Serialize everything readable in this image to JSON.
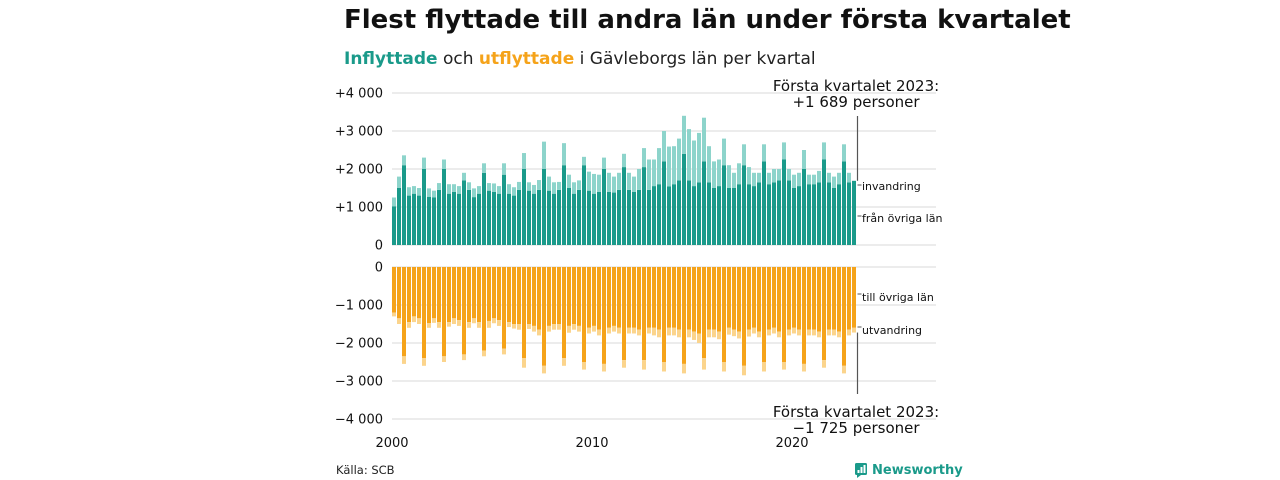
{
  "title": "Flest flyttade till andra län under första kvartalet",
  "subtitle": {
    "part_in": "Inflyttade",
    "part_mid": " och ",
    "part_out": "utflyttade",
    "part_rest": " i Gävleborgs län per kvartal"
  },
  "source": "Källa: SCB",
  "logo": "Newsworthy",
  "colors": {
    "in_dark": "#1a9a8a",
    "in_light": "#8dd4cb",
    "out_dark": "#f5a31a",
    "out_light": "#fbd48c",
    "grid": "#d9d9d9"
  },
  "chart_data": [
    {
      "type": "bar",
      "panel": "inflyttade",
      "stacked": true,
      "x_start": "2000 Q1",
      "x_end": "2023 Q1",
      "ylim": [
        0,
        4000
      ],
      "yticks": [
        {
          "v": 0,
          "label": "0"
        },
        {
          "v": 1000,
          "label": "+1 000"
        },
        {
          "v": 2000,
          "label": "+2 000"
        },
        {
          "v": 3000,
          "label": "+3 000"
        },
        {
          "v": 4000,
          "label": "+4 000"
        }
      ],
      "series": [
        {
          "name": "från övriga län",
          "values": [
            1020,
            1500,
            2100,
            1300,
            1350,
            1300,
            2000,
            1270,
            1250,
            1450,
            2000,
            1350,
            1400,
            1350,
            1700,
            1450,
            1260,
            1350,
            1900,
            1430,
            1400,
            1350,
            1850,
            1350,
            1300,
            1450,
            2000,
            1430,
            1350,
            1450,
            2000,
            1430,
            1350,
            1450,
            2100,
            1500,
            1350,
            1450,
            2100,
            1430,
            1350,
            1400,
            2000,
            1400,
            1380,
            1450,
            2050,
            1450,
            1400,
            1450,
            2050,
            1450,
            1550,
            1600,
            2200,
            1540,
            1600,
            1700,
            2400,
            1700,
            1550,
            1650,
            2200,
            1650,
            1500,
            1550,
            2100,
            1500,
            1500,
            1600,
            2100,
            1600,
            1550,
            1650,
            2200,
            1600,
            1650,
            1700,
            2250,
            1700,
            1500,
            1550,
            2000,
            1600,
            1600,
            1650,
            2250,
            1650,
            1500,
            1600,
            2200,
            1650,
            1689
          ]
        },
        {
          "name": "invandring",
          "values": [
            230,
            300,
            260,
            220,
            200,
            200,
            300,
            220,
            180,
            180,
            250,
            250,
            200,
            200,
            200,
            200,
            230,
            200,
            250,
            200,
            220,
            200,
            300,
            250,
            220,
            210,
            420,
            220,
            230,
            260,
            720,
            370,
            300,
            210,
            580,
            350,
            300,
            250,
            220,
            500,
            520,
            450,
            300,
            500,
            420,
            450,
            350,
            450,
            400,
            550,
            500,
            800,
            700,
            950,
            800,
            1050,
            1000,
            1100,
            1000,
            1350,
            1200,
            1300,
            1150,
            950,
            700,
            700,
            700,
            600,
            400,
            550,
            550,
            450,
            350,
            250,
            450,
            300,
            350,
            300,
            450,
            300,
            350,
            350,
            500,
            250,
            250,
            300,
            450,
            250,
            300,
            300,
            450,
            250,
            0
          ]
        }
      ]
    },
    {
      "type": "bar",
      "panel": "utflyttade",
      "stacked": true,
      "ylim": [
        -4000,
        0
      ],
      "yticks": [
        {
          "v": 0,
          "label": "0"
        },
        {
          "v": -1000,
          "label": "−1 000"
        },
        {
          "v": -2000,
          "label": "−2 000"
        },
        {
          "v": -3000,
          "label": "−3 000"
        },
        {
          "v": -4000,
          "label": "−4 000"
        }
      ],
      "series": [
        {
          "name": "till övriga län",
          "values": [
            -1200,
            -1350,
            -2350,
            -1450,
            -1300,
            -1350,
            -2400,
            -1480,
            -1350,
            -1450,
            -2350,
            -1450,
            -1350,
            -1400,
            -2300,
            -1450,
            -1350,
            -1450,
            -2200,
            -1420,
            -1350,
            -1400,
            -2150,
            -1450,
            -1500,
            -1500,
            -2400,
            -1500,
            -1550,
            -1650,
            -2600,
            -1550,
            -1500,
            -1500,
            -2400,
            -1550,
            -1500,
            -1550,
            -2500,
            -1600,
            -1550,
            -1650,
            -2550,
            -1600,
            -1550,
            -1600,
            -2450,
            -1600,
            -1600,
            -1650,
            -2450,
            -1600,
            -1600,
            -1650,
            -2500,
            -1600,
            -1600,
            -1650,
            -2550,
            -1650,
            -1700,
            -1750,
            -2400,
            -1650,
            -1650,
            -1700,
            -2500,
            -1600,
            -1650,
            -1700,
            -2600,
            -1650,
            -1600,
            -1700,
            -2500,
            -1650,
            -1600,
            -1700,
            -2500,
            -1650,
            -1600,
            -1650,
            -2550,
            -1650,
            -1650,
            -1700,
            -2450,
            -1650,
            -1650,
            -1700,
            -2600,
            -1650,
            -1600
          ]
        },
        {
          "name": "utvandring",
          "values": [
            -100,
            -150,
            -200,
            -150,
            -150,
            -150,
            -200,
            -120,
            -120,
            -150,
            -150,
            -120,
            -150,
            -150,
            -150,
            -150,
            -130,
            -150,
            -150,
            -180,
            -130,
            -150,
            -150,
            -130,
            -120,
            -150,
            -250,
            -130,
            -150,
            -150,
            -200,
            -150,
            -150,
            -150,
            -200,
            -180,
            -150,
            -150,
            -200,
            -150,
            -150,
            -150,
            -200,
            -150,
            -150,
            -150,
            -200,
            -150,
            -150,
            -150,
            -250,
            -150,
            -200,
            -200,
            -250,
            -200,
            -200,
            -200,
            -250,
            -200,
            -220,
            -250,
            -300,
            -200,
            -200,
            -200,
            -250,
            -180,
            -170,
            -180,
            -250,
            -180,
            -150,
            -150,
            -250,
            -150,
            -150,
            -150,
            -200,
            -150,
            -150,
            -150,
            -200,
            -150,
            -150,
            -150,
            -200,
            -150,
            -150,
            -150,
            -200,
            -150,
            -125
          ]
        }
      ]
    }
  ],
  "xticks": [
    {
      "year": 2000,
      "label": "2000"
    },
    {
      "year": 2010,
      "label": "2010"
    },
    {
      "year": 2020,
      "label": "2020"
    }
  ],
  "annotations": {
    "top_line1": "Första kvartalet 2023:",
    "top_line2": "+1 689 personer",
    "bottom_line1": "Första kvartalet 2023:",
    "bottom_line2": "−1 725 personer"
  },
  "series_labels": {
    "invandring": "invandring",
    "fran_ovriga_lan": "från övriga län",
    "till_ovriga_lan": "till övriga län",
    "utvandring": "utvandring"
  }
}
